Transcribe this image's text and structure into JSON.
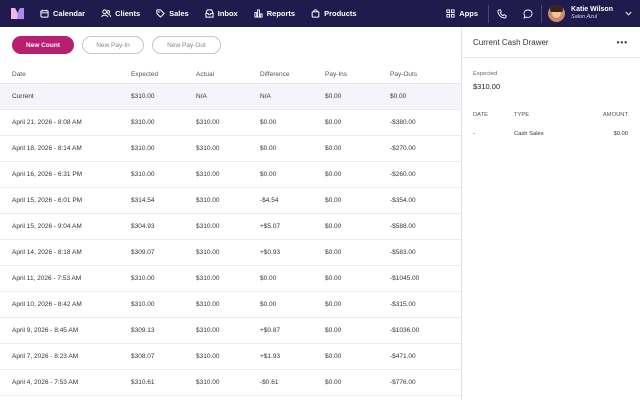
{
  "nav": {
    "items": [
      {
        "label": "Calendar",
        "icon": "calendar-icon"
      },
      {
        "label": "Clients",
        "icon": "users-icon"
      },
      {
        "label": "Sales",
        "icon": "tag-icon"
      },
      {
        "label": "Inbox",
        "icon": "inbox-icon"
      },
      {
        "label": "Reports",
        "icon": "bar-chart-icon"
      },
      {
        "label": "Products",
        "icon": "shopping-bag-icon"
      }
    ],
    "apps_label": "Apps",
    "user": {
      "name": "Katie Wilson",
      "org": "Salon Azul"
    },
    "colors": {
      "bar": "#1f1b4d",
      "accent": "#b81f6e"
    }
  },
  "actions": {
    "new_count": "New Count",
    "new_pay_in": "New Pay-In",
    "new_pay_out": "New Pay-Out"
  },
  "table": {
    "headers": [
      "Date",
      "Expected",
      "Actual",
      "Difference",
      "Pay-Ins",
      "Pay-Outs"
    ],
    "rows": [
      [
        "Current",
        "$310.00",
        "N/A",
        "N/A",
        "$0.00",
        "$0.00"
      ],
      [
        "April 21, 2026 - 8:08 AM",
        "$310.00",
        "$310.00",
        "$0.00",
        "$0.00",
        "-$380.00"
      ],
      [
        "April 18, 2026 - 8:14 AM",
        "$310.00",
        "$310.00",
        "$0.00",
        "$0.00",
        "-$270.00"
      ],
      [
        "April 16, 2026 - 6:31 PM",
        "$310.00",
        "$310.00",
        "$0.00",
        "$0.00",
        "-$260.00"
      ],
      [
        "April 15, 2026 - 6:01 PM",
        "$314.54",
        "$310.00",
        "-$4.54",
        "$0.00",
        "-$354.00"
      ],
      [
        "April 15, 2026 - 9:04 AM",
        "$304.93",
        "$310.00",
        "+$5.07",
        "$0.00",
        "-$588.00"
      ],
      [
        "April 14, 2026 - 8:18 AM",
        "$309.07",
        "$310.00",
        "+$0.93",
        "$0.00",
        "-$583.00"
      ],
      [
        "April 11, 2026 - 7:53 AM",
        "$310.00",
        "$310.00",
        "$0.00",
        "$0.00",
        "-$1045.00"
      ],
      [
        "April 10, 2026 - 8:42 AM",
        "$310.00",
        "$310.00",
        "$0.00",
        "$0.00",
        "-$315.00"
      ],
      [
        "April 9, 2026 - 8:45 AM",
        "$309.13",
        "$310.00",
        "+$0.87",
        "$0.00",
        "-$1036.00"
      ],
      [
        "April 7, 2026 - 8:23 AM",
        "$308.07",
        "$310.00",
        "+$1.93",
        "$0.00",
        "-$471.00"
      ],
      [
        "April 4, 2026 - 7:53 AM",
        "$310.61",
        "$310.00",
        "-$0.61",
        "$0.00",
        "-$776.00"
      ]
    ]
  },
  "panel": {
    "title": "Current Cash Drawer",
    "more": "•••",
    "expected_label": "Expected",
    "expected_value": "$310.00",
    "headers": [
      "DATE",
      "TYPE",
      "AMOUNT"
    ],
    "rows": [
      [
        "-",
        "Cash Sales",
        "$0.00"
      ]
    ]
  }
}
